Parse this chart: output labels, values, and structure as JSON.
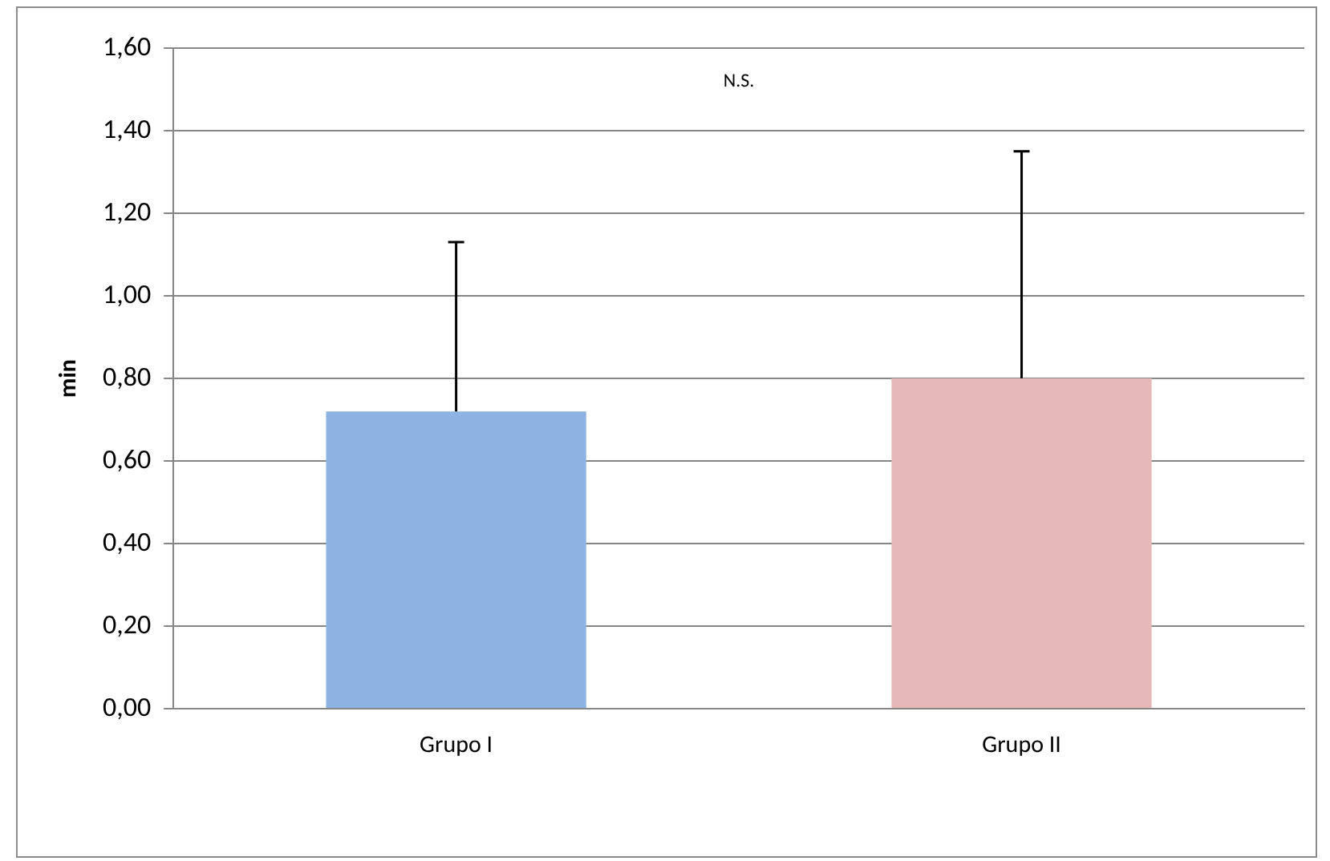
{
  "chart_data": {
    "type": "bar",
    "ylabel": "min",
    "categories": [
      "Grupo I",
      "Grupo II"
    ],
    "values": [
      0.72,
      0.8
    ],
    "colors": [
      "#8db3e2",
      "#e6b9b8"
    ],
    "errors": [
      [
        0.72,
        1.13
      ],
      [
        0.8,
        1.35
      ]
    ],
    "ylim": [
      0,
      1.6
    ],
    "yticks": [
      {
        "value": 0,
        "label": "0,00"
      },
      {
        "value": 0.2,
        "label": "0,20"
      },
      {
        "value": 0.4,
        "label": "0,40"
      },
      {
        "value": 0.6,
        "label": "0,60"
      },
      {
        "value": 0.8,
        "label": "0,80"
      },
      {
        "value": 1.0,
        "label": "1,00"
      },
      {
        "value": 1.2,
        "label": "1,20"
      },
      {
        "value": 1.4,
        "label": "1,40"
      },
      {
        "value": 1.6,
        "label": "1,60"
      }
    ],
    "grid": "y",
    "annotations": [
      "N.S."
    ]
  }
}
